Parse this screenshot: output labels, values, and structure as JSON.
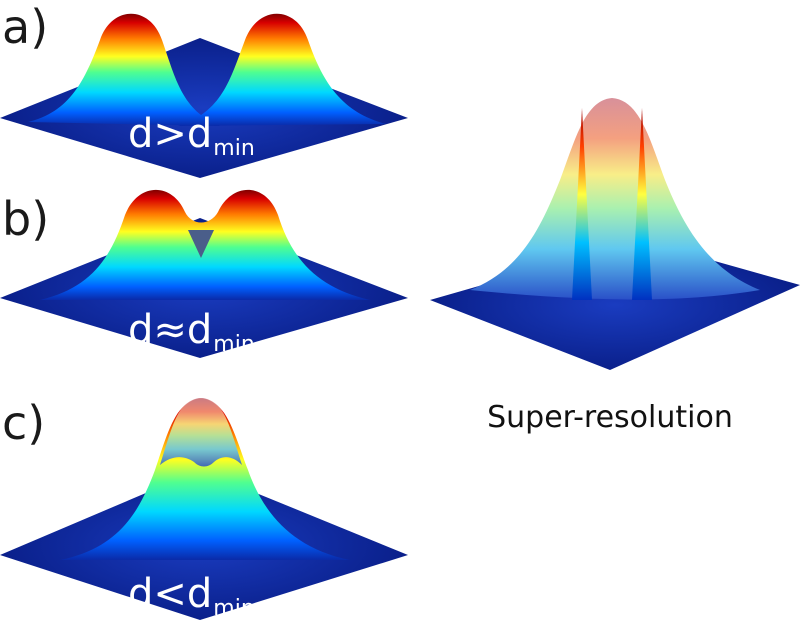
{
  "panels": [
    {
      "label": "a)",
      "symbol": "d",
      "relation": ">",
      "subscript": "min"
    },
    {
      "label": "b)",
      "symbol": "d",
      "relation": "≈",
      "subscript": "min"
    },
    {
      "label": "c)",
      "symbol": "d",
      "relation": "<",
      "subscript": "min"
    }
  ],
  "super_resolution": {
    "caption": "Super-resolution"
  },
  "colors": {
    "floor": "#0a1f8f",
    "floor_dark": "#06145e",
    "colormap": [
      "#00107a",
      "#0050ff",
      "#00d0ff",
      "#40ff90",
      "#ffff20",
      "#ff8000",
      "#e00000",
      "#8a0000"
    ]
  }
}
